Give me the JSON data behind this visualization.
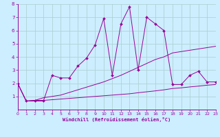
{
  "title": "",
  "xlabel": "Windchill (Refroidissement éolien,°C)",
  "bg_color": "#cceeff",
  "line_color": "#990099",
  "grid_color": "#aacccc",
  "xlim": [
    0,
    23
  ],
  "ylim": [
    0,
    8
  ],
  "xticks": [
    0,
    1,
    2,
    3,
    4,
    5,
    6,
    7,
    8,
    9,
    10,
    11,
    12,
    13,
    14,
    15,
    16,
    17,
    18,
    19,
    20,
    21,
    22,
    23
  ],
  "yticks": [
    1,
    2,
    3,
    4,
    5,
    6,
    7,
    8
  ],
  "series1_x": [
    0,
    1,
    2,
    3,
    4,
    5,
    6,
    7,
    8,
    9,
    10,
    11,
    12,
    13,
    14,
    15,
    16,
    17,
    18,
    19,
    20,
    21,
    22,
    23
  ],
  "series1_y": [
    2.0,
    0.65,
    0.65,
    0.65,
    2.6,
    2.4,
    2.4,
    3.3,
    3.9,
    4.9,
    6.9,
    2.6,
    6.5,
    7.8,
    3.0,
    7.0,
    6.5,
    6.0,
    1.9,
    1.9,
    2.6,
    2.9,
    2.1,
    2.1
  ],
  "series2_x": [
    0,
    1,
    2,
    3,
    4,
    5,
    6,
    7,
    8,
    9,
    10,
    11,
    12,
    13,
    14,
    15,
    16,
    17,
    18,
    19,
    20,
    21,
    22,
    23
  ],
  "series2_y": [
    2.0,
    0.65,
    0.7,
    0.7,
    0.75,
    0.8,
    0.85,
    0.9,
    0.95,
    1.0,
    1.05,
    1.1,
    1.15,
    1.2,
    1.28,
    1.35,
    1.42,
    1.5,
    1.6,
    1.65,
    1.72,
    1.78,
    1.85,
    1.9
  ],
  "series3_x": [
    0,
    1,
    2,
    3,
    4,
    5,
    6,
    7,
    8,
    9,
    10,
    11,
    12,
    13,
    14,
    15,
    16,
    17,
    18,
    19,
    20,
    21,
    22,
    23
  ],
  "series3_y": [
    2.0,
    0.65,
    0.7,
    0.9,
    1.0,
    1.1,
    1.3,
    1.5,
    1.7,
    1.9,
    2.1,
    2.35,
    2.6,
    2.9,
    3.2,
    3.5,
    3.8,
    4.0,
    4.3,
    4.4,
    4.5,
    4.6,
    4.7,
    4.8
  ]
}
